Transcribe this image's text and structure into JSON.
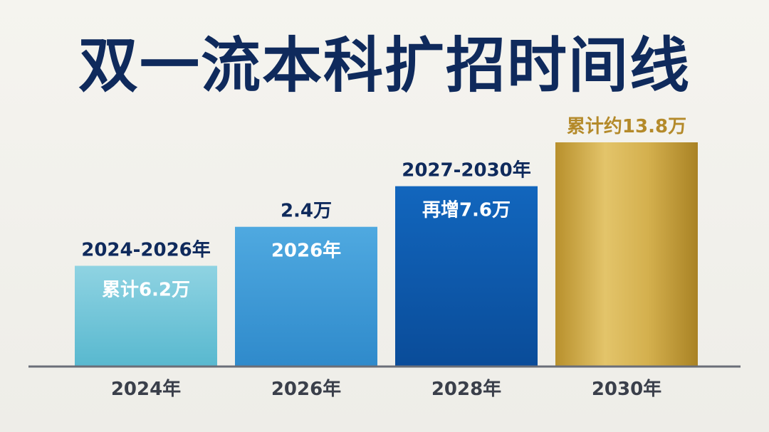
{
  "title": "双一流本科扩招时间线",
  "colors": {
    "title": "#0f2a5c",
    "bar_1": "#6cc4d8",
    "bar_2": "#3a9ad6",
    "bar_3": "#0a56a8",
    "bar_4": "#c7a23c",
    "axis": "#6a6e78",
    "gold_text": "#b48a2a"
  },
  "chart_data": {
    "type": "bar",
    "categories": [
      "2024年",
      "2026年",
      "2028年",
      "2030年"
    ],
    "values": [
      6.2,
      8.6,
      11.1,
      13.8
    ],
    "unit": "万",
    "labels_above": [
      "2024-2026年",
      "2.4万",
      "2027-2030年",
      "累计约13.8万"
    ],
    "labels_inside": [
      "累计6.2万",
      "2026年",
      "再增7.6万",
      ""
    ],
    "ylim": [
      0,
      15
    ],
    "grid": false,
    "legend": "none"
  }
}
